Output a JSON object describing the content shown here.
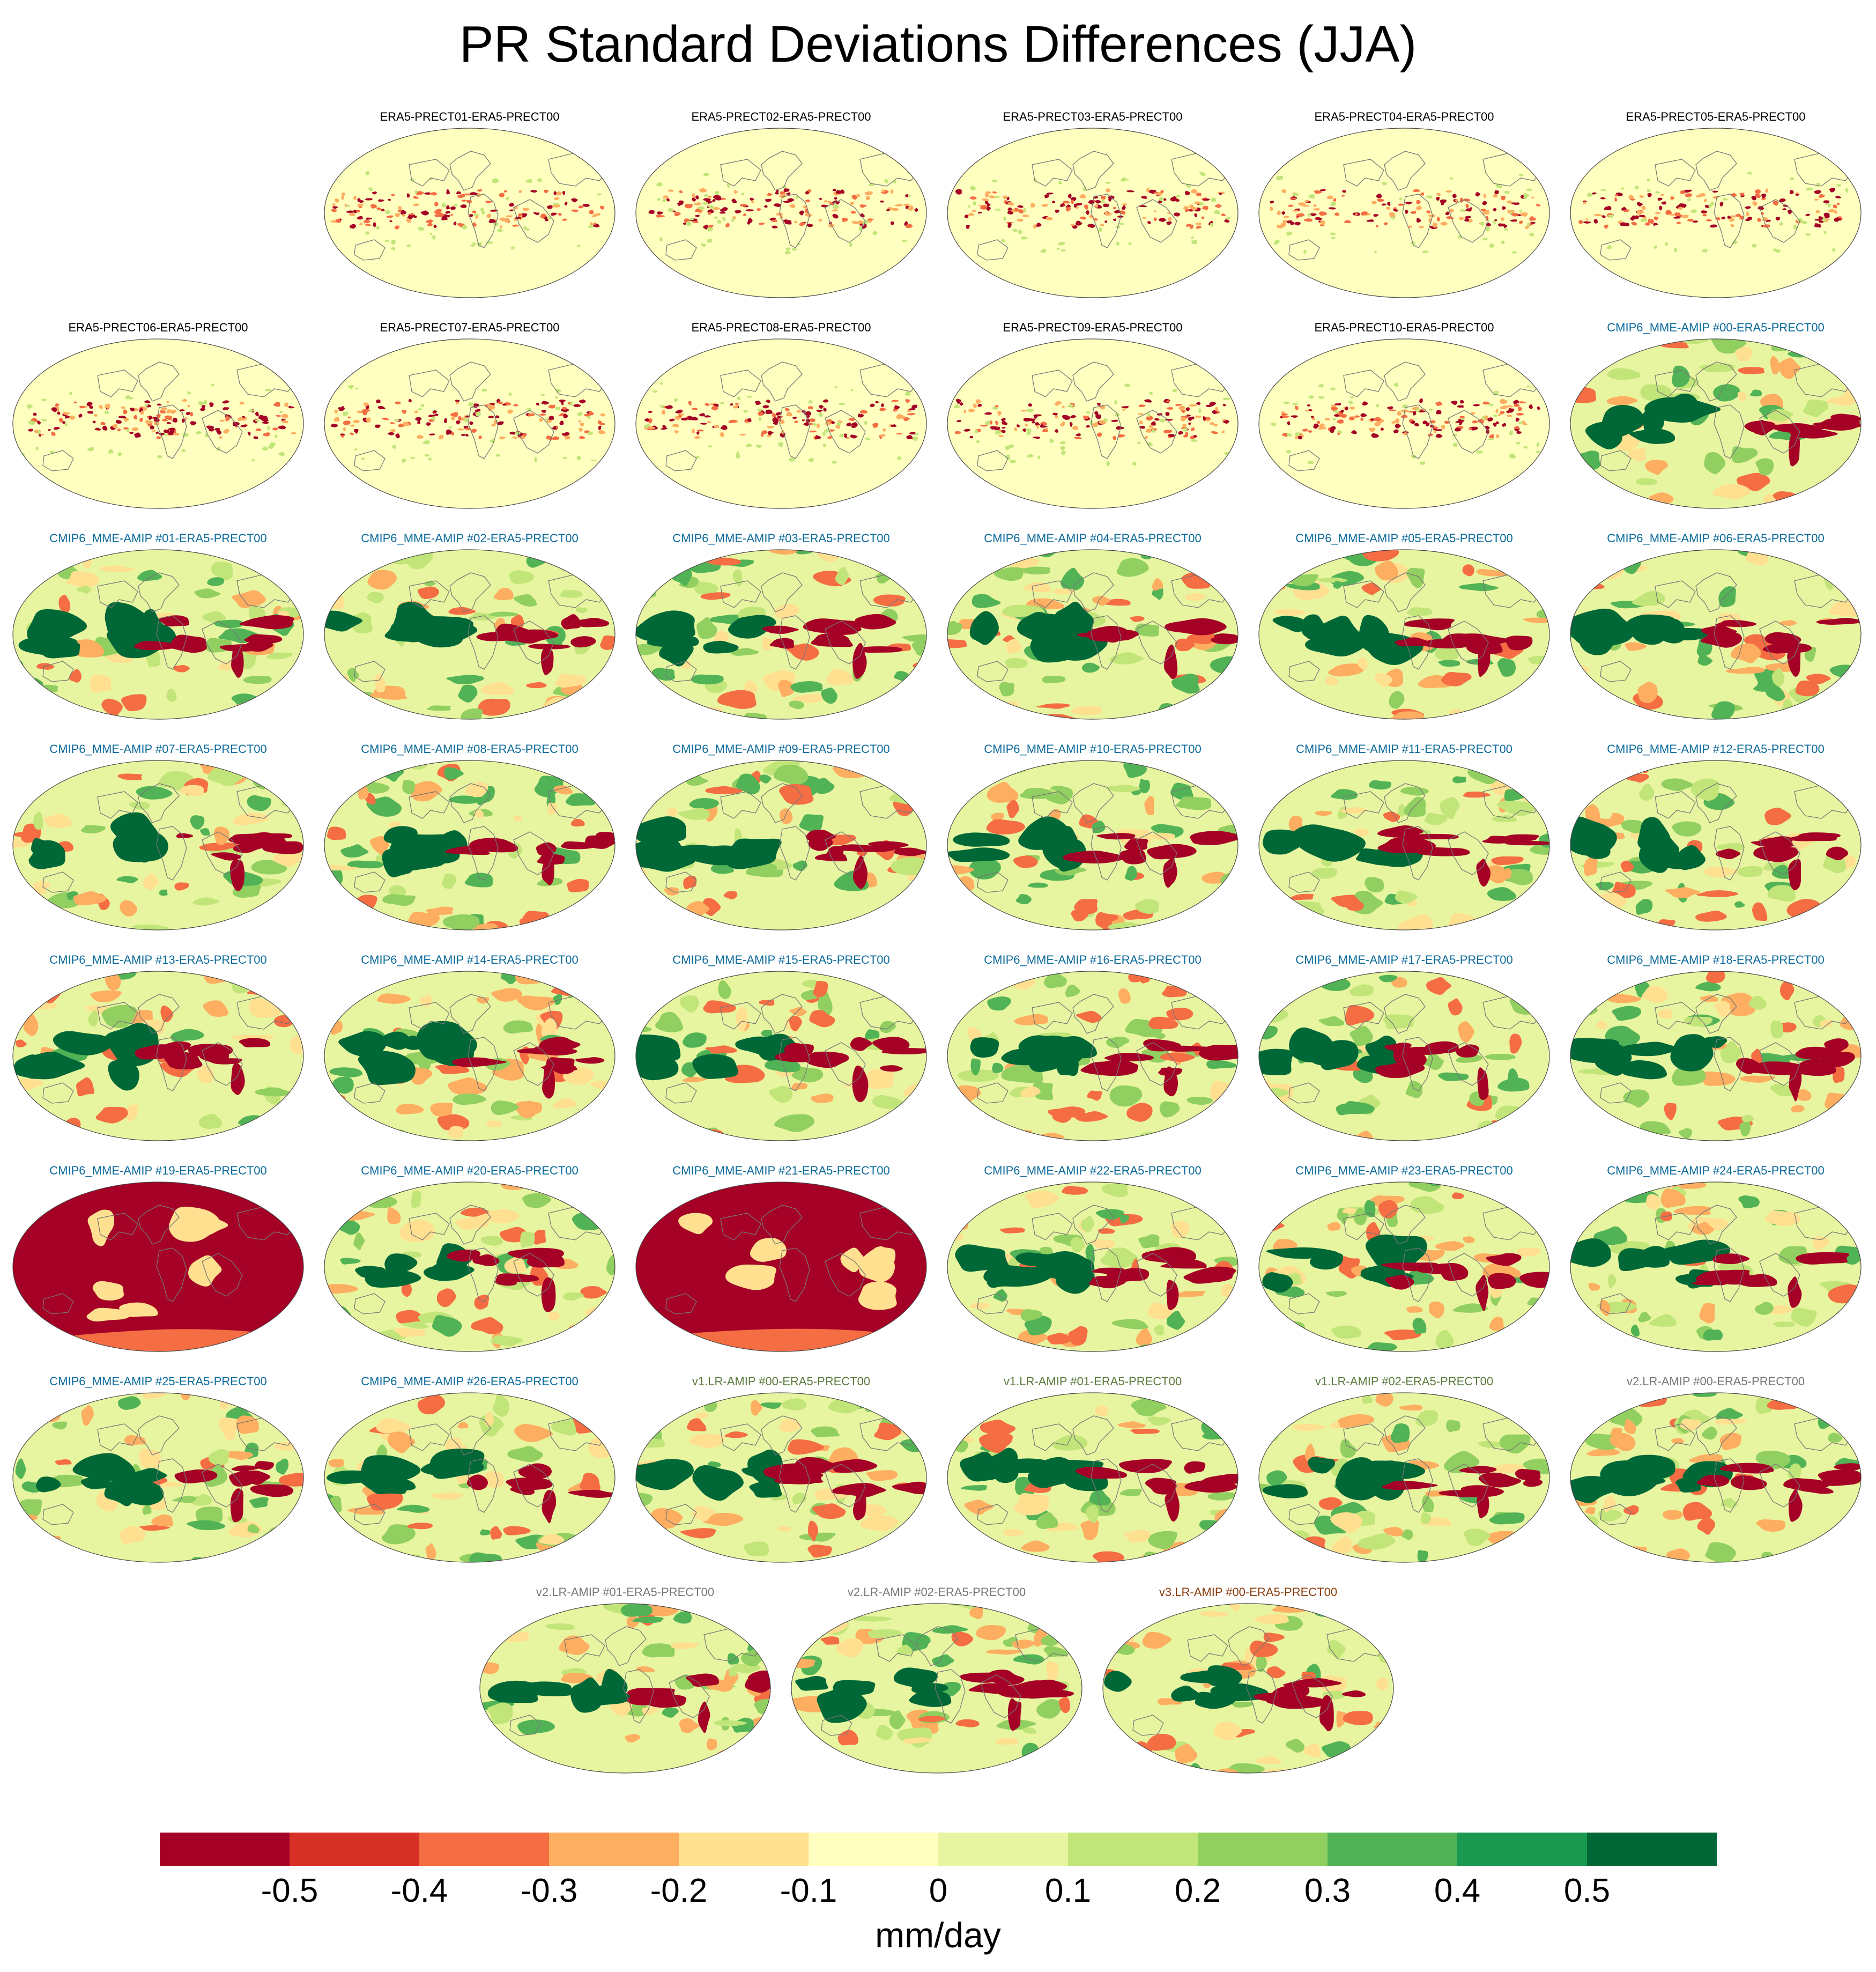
{
  "title": "PR Standard Deviations Differences (JJA)",
  "units": "mm/day",
  "colorbar": {
    "colors": [
      "#a50026",
      "#d73027",
      "#f46d43",
      "#fdae61",
      "#fee090",
      "#ffffbf",
      "#e8f5a0",
      "#c2e57a",
      "#91cf60",
      "#52b356",
      "#1a9850",
      "#006837"
    ],
    "ticks": [
      "-0.5",
      "-0.4",
      "-0.3",
      "-0.2",
      "-0.1",
      "0",
      "0.1",
      "0.2",
      "0.3",
      "0.4",
      "0.5"
    ]
  },
  "label_colors": {
    "ERA5": "#000000",
    "CMIP6": "#0b6a9c",
    "v1": "#5a7a3a",
    "v2": "#777777",
    "v3": "#8b3a0a"
  },
  "panels": [
    {
      "label": "ERA5-PRECT01-ERA5-PRECT00",
      "group": "ERA5",
      "pattern": "era"
    },
    {
      "label": "ERA5-PRECT02-ERA5-PRECT00",
      "group": "ERA5",
      "pattern": "era"
    },
    {
      "label": "ERA5-PRECT03-ERA5-PRECT00",
      "group": "ERA5",
      "pattern": "era"
    },
    {
      "label": "ERA5-PRECT04-ERA5-PRECT00",
      "group": "ERA5",
      "pattern": "era"
    },
    {
      "label": "ERA5-PRECT05-ERA5-PRECT00",
      "group": "ERA5",
      "pattern": "era"
    },
    {
      "label": "ERA5-PRECT06-ERA5-PRECT00",
      "group": "ERA5",
      "pattern": "era"
    },
    {
      "label": "ERA5-PRECT07-ERA5-PRECT00",
      "group": "ERA5",
      "pattern": "era"
    },
    {
      "label": "ERA5-PRECT08-ERA5-PRECT00",
      "group": "ERA5",
      "pattern": "era"
    },
    {
      "label": "ERA5-PRECT09-ERA5-PRECT00",
      "group": "ERA5",
      "pattern": "era"
    },
    {
      "label": "ERA5-PRECT10-ERA5-PRECT00",
      "group": "ERA5",
      "pattern": "era"
    },
    {
      "label": "CMIP6_MME-AMIP  #00-ERA5-PRECT00",
      "group": "CMIP6",
      "pattern": "model"
    },
    {
      "label": "CMIP6_MME-AMIP  #01-ERA5-PRECT00",
      "group": "CMIP6",
      "pattern": "model"
    },
    {
      "label": "CMIP6_MME-AMIP  #02-ERA5-PRECT00",
      "group": "CMIP6",
      "pattern": "model"
    },
    {
      "label": "CMIP6_MME-AMIP  #03-ERA5-PRECT00",
      "group": "CMIP6",
      "pattern": "model"
    },
    {
      "label": "CMIP6_MME-AMIP  #04-ERA5-PRECT00",
      "group": "CMIP6",
      "pattern": "model"
    },
    {
      "label": "CMIP6_MME-AMIP  #05-ERA5-PRECT00",
      "group": "CMIP6",
      "pattern": "model"
    },
    {
      "label": "CMIP6_MME-AMIP  #06-ERA5-PRECT00",
      "group": "CMIP6",
      "pattern": "model"
    },
    {
      "label": "CMIP6_MME-AMIP  #07-ERA5-PRECT00",
      "group": "CMIP6",
      "pattern": "model"
    },
    {
      "label": "CMIP6_MME-AMIP  #08-ERA5-PRECT00",
      "group": "CMIP6",
      "pattern": "model"
    },
    {
      "label": "CMIP6_MME-AMIP  #09-ERA5-PRECT00",
      "group": "CMIP6",
      "pattern": "model"
    },
    {
      "label": "CMIP6_MME-AMIP  #10-ERA5-PRECT00",
      "group": "CMIP6",
      "pattern": "model"
    },
    {
      "label": "CMIP6_MME-AMIP  #11-ERA5-PRECT00",
      "group": "CMIP6",
      "pattern": "model"
    },
    {
      "label": "CMIP6_MME-AMIP  #12-ERA5-PRECT00",
      "group": "CMIP6",
      "pattern": "model"
    },
    {
      "label": "CMIP6_MME-AMIP  #13-ERA5-PRECT00",
      "group": "CMIP6",
      "pattern": "model"
    },
    {
      "label": "CMIP6_MME-AMIP  #14-ERA5-PRECT00",
      "group": "CMIP6",
      "pattern": "model"
    },
    {
      "label": "CMIP6_MME-AMIP  #15-ERA5-PRECT00",
      "group": "CMIP6",
      "pattern": "model"
    },
    {
      "label": "CMIP6_MME-AMIP  #16-ERA5-PRECT00",
      "group": "CMIP6",
      "pattern": "model"
    },
    {
      "label": "CMIP6_MME-AMIP  #17-ERA5-PRECT00",
      "group": "CMIP6",
      "pattern": "model"
    },
    {
      "label": "CMIP6_MME-AMIP  #18-ERA5-PRECT00",
      "group": "CMIP6",
      "pattern": "model"
    },
    {
      "label": "CMIP6_MME-AMIP  #19-ERA5-PRECT00",
      "group": "CMIP6",
      "pattern": "dry"
    },
    {
      "label": "CMIP6_MME-AMIP  #20-ERA5-PRECT00",
      "group": "CMIP6",
      "pattern": "model"
    },
    {
      "label": "CMIP6_MME-AMIP  #21-ERA5-PRECT00",
      "group": "CMIP6",
      "pattern": "dry"
    },
    {
      "label": "CMIP6_MME-AMIP  #22-ERA5-PRECT00",
      "group": "CMIP6",
      "pattern": "model"
    },
    {
      "label": "CMIP6_MME-AMIP  #23-ERA5-PRECT00",
      "group": "CMIP6",
      "pattern": "model"
    },
    {
      "label": "CMIP6_MME-AMIP  #24-ERA5-PRECT00",
      "group": "CMIP6",
      "pattern": "model"
    },
    {
      "label": "CMIP6_MME-AMIP  #25-ERA5-PRECT00",
      "group": "CMIP6",
      "pattern": "model"
    },
    {
      "label": "CMIP6_MME-AMIP  #26-ERA5-PRECT00",
      "group": "CMIP6",
      "pattern": "model"
    },
    {
      "label": "v1.LR-AMIP  #00-ERA5-PRECT00",
      "group": "v1",
      "pattern": "model"
    },
    {
      "label": "v1.LR-AMIP  #01-ERA5-PRECT00",
      "group": "v1",
      "pattern": "model"
    },
    {
      "label": "v1.LR-AMIP  #02-ERA5-PRECT00",
      "group": "v1",
      "pattern": "model"
    },
    {
      "label": "v2.LR-AMIP  #00-ERA5-PRECT00",
      "group": "v2",
      "pattern": "model"
    },
    {
      "label": "v2.LR-AMIP  #01-ERA5-PRECT00",
      "group": "v2",
      "pattern": "model"
    },
    {
      "label": "v2.LR-AMIP  #02-ERA5-PRECT00",
      "group": "v2",
      "pattern": "model"
    },
    {
      "label": "v3.LR-AMIP  #00-ERA5-PRECT00",
      "group": "v3",
      "pattern": "model"
    }
  ]
}
